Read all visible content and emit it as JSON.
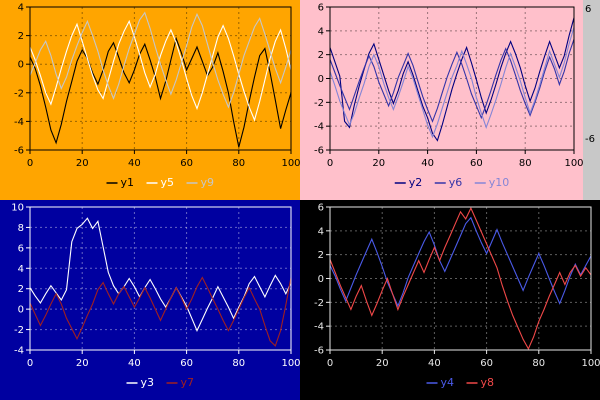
{
  "partial_panel": {
    "bg": "#C8C8C8",
    "labels": [
      "6",
      "-6"
    ]
  },
  "chart_data": [
    {
      "type": "line",
      "title": "",
      "xlabel": "",
      "ylabel": "",
      "bg": "#FFA500",
      "fg": "#000000",
      "grid": true,
      "legend_position": "bottom",
      "xlim": [
        0,
        100
      ],
      "ylim": [
        -6,
        4
      ],
      "xticks": [
        0,
        20,
        40,
        60,
        80,
        100
      ],
      "yticks": [
        4,
        2,
        0,
        -2,
        -4,
        -6
      ],
      "series": [
        {
          "name": "y1",
          "color": "#000000",
          "values": [
            0.5,
            -0.3,
            -1.5,
            -3.0,
            -4.6,
            -5.5,
            -4.2,
            -2.6,
            -1.2,
            0.2,
            1.0,
            0.4,
            -0.6,
            -1.4,
            -0.4,
            0.9,
            1.5,
            0.5,
            -0.6,
            -1.3,
            -0.4,
            0.7,
            1.4,
            0.3,
            -0.9,
            -2.4,
            -1.2,
            0.3,
            1.8,
            0.8,
            -0.4,
            0.4,
            1.2,
            0.2,
            -0.8,
            -0.2,
            0.8,
            -0.5,
            -2.0,
            -4.0,
            -5.8,
            -4.4,
            -2.6,
            -0.9,
            0.6,
            1.1,
            -0.6,
            -2.5,
            -4.5,
            -3.2,
            -2.0
          ]
        },
        {
          "name": "y5",
          "color": "#FFFFFF",
          "values": [
            1.2,
            0.3,
            -0.8,
            -2.0,
            -2.8,
            -1.6,
            -0.3,
            0.9,
            2.0,
            2.8,
            1.6,
            0.4,
            -0.8,
            -1.8,
            -2.4,
            -1.1,
            0.2,
            1.4,
            2.3,
            3.0,
            1.9,
            0.7,
            -0.6,
            -1.6,
            -0.7,
            0.6,
            1.6,
            2.4,
            1.5,
            0.3,
            -1.0,
            -2.2,
            -3.1,
            -2.0,
            -0.7,
            0.6,
            1.9,
            2.7,
            1.8,
            0.6,
            -0.7,
            -1.9,
            -3.0,
            -3.9,
            -2.6,
            -1.1,
            0.4,
            1.6,
            2.4,
            1.1,
            -0.4
          ]
        },
        {
          "name": "y9",
          "color": "#C6C6C6",
          "values": [
            -0.8,
            0.1,
            1.0,
            1.6,
            0.6,
            -0.7,
            -1.7,
            -0.9,
            0.3,
            1.3,
            2.2,
            3.0,
            2.0,
            0.9,
            -0.4,
            -1.5,
            -2.4,
            -1.4,
            -0.1,
            1.1,
            2.1,
            3.1,
            3.6,
            2.5,
            1.2,
            0.0,
            -1.1,
            -2.1,
            -1.1,
            0.1,
            1.3,
            2.6,
            3.5,
            2.7,
            1.4,
            0.1,
            -1.1,
            -2.1,
            -3.0,
            -2.0,
            -0.7,
            0.6,
            1.6,
            2.6,
            3.2,
            2.1,
            0.9,
            -0.3,
            -1.3,
            -0.2,
            1.0
          ]
        }
      ]
    },
    {
      "type": "line",
      "title": "",
      "xlabel": "",
      "ylabel": "",
      "bg": "#FFC0CB",
      "fg": "#000000",
      "grid": true,
      "legend_position": "bottom",
      "xlim": [
        0,
        100
      ],
      "ylim": [
        -6,
        6
      ],
      "xticks": [
        0,
        20,
        40,
        60,
        80,
        100
      ],
      "yticks": [
        6,
        4,
        2,
        0,
        -2,
        -4,
        -6
      ],
      "series": [
        {
          "name": "y2",
          "color": "#000080",
          "values": [
            2.6,
            1.4,
            0.2,
            -3.6,
            -4.1,
            -2.2,
            -0.6,
            0.8,
            2.1,
            2.9,
            1.6,
            0.3,
            -1.0,
            -2.1,
            -1.0,
            0.4,
            1.4,
            0.3,
            -1.0,
            -2.3,
            -3.3,
            -4.6,
            -5.2,
            -3.9,
            -2.4,
            -0.9,
            0.4,
            1.6,
            2.6,
            1.3,
            -0.1,
            -1.6,
            -2.9,
            -1.8,
            -0.5,
            0.9,
            2.1,
            3.1,
            2.1,
            0.9,
            -0.6,
            -1.9,
            -0.8,
            0.6,
            1.9,
            3.1,
            2.0,
            0.9,
            1.9,
            3.6,
            5.1
          ]
        },
        {
          "name": "y6",
          "color": "#3434A8",
          "values": [
            1.6,
            0.5,
            -0.6,
            -1.6,
            -2.6,
            -1.4,
            -0.2,
            0.9,
            1.9,
            1.0,
            -0.3,
            -1.3,
            -2.3,
            -1.2,
            0.1,
            1.1,
            2.1,
            1.1,
            -0.2,
            -1.5,
            -2.6,
            -3.6,
            -2.5,
            -1.2,
            0.1,
            1.2,
            2.2,
            1.2,
            0.0,
            -1.3,
            -2.3,
            -3.3,
            -2.2,
            -1.0,
            0.3,
            1.5,
            2.5,
            1.5,
            0.3,
            -1.0,
            -2.1,
            -3.1,
            -2.0,
            -0.8,
            0.6,
            1.8,
            0.8,
            -0.5,
            0.6,
            2.1,
            3.3
          ]
        },
        {
          "name": "y10",
          "color": "#8585D6",
          "values": [
            0.6,
            -0.6,
            -1.9,
            -2.9,
            -3.9,
            -2.9,
            -1.6,
            -0.4,
            1.0,
            2.0,
            1.0,
            -0.4,
            -1.6,
            -2.6,
            -1.5,
            -0.3,
            1.0,
            0.0,
            -1.3,
            -2.6,
            -3.9,
            -4.9,
            -3.8,
            -2.5,
            -1.2,
            0.1,
            1.1,
            2.3,
            1.2,
            0.0,
            -1.6,
            -2.9,
            -4.1,
            -3.0,
            -1.8,
            -0.5,
            0.9,
            2.1,
            1.0,
            -0.2,
            -1.6,
            -2.9,
            -1.8,
            -0.5,
            0.9,
            2.3,
            1.2,
            0.1,
            1.3,
            2.9,
            4.3
          ]
        }
      ]
    },
    {
      "type": "line",
      "title": "",
      "xlabel": "",
      "ylabel": "",
      "bg": "#0000A0",
      "fg": "#FFFFFF",
      "grid": true,
      "legend_position": "bottom",
      "xlim": [
        0,
        100
      ],
      "ylim": [
        -4,
        10
      ],
      "xticks": [
        0,
        20,
        40,
        60,
        80,
        100
      ],
      "yticks": [
        10,
        8,
        6,
        4,
        2,
        0,
        -2,
        -4
      ],
      "series": [
        {
          "name": "y3",
          "color": "#FFFFFF",
          "values": [
            2.1,
            1.3,
            0.6,
            1.5,
            2.3,
            1.6,
            0.9,
            1.9,
            6.6,
            7.9,
            8.3,
            8.9,
            7.9,
            8.6,
            6.1,
            3.6,
            2.3,
            1.5,
            2.2,
            3.0,
            2.2,
            1.2,
            2.1,
            2.9,
            2.0,
            1.0,
            0.2,
            1.1,
            2.1,
            1.2,
            0.3,
            -0.9,
            -2.1,
            -1.0,
            0.1,
            1.1,
            2.2,
            1.2,
            0.2,
            -0.9,
            0.2,
            1.2,
            2.5,
            3.2,
            2.2,
            1.2,
            2.3,
            3.3,
            2.5,
            1.5,
            2.6
          ]
        },
        {
          "name": "y7",
          "color": "#A02020",
          "values": [
            0.6,
            -0.5,
            -1.6,
            -0.6,
            0.5,
            1.5,
            0.5,
            -0.9,
            -1.9,
            -2.9,
            -1.8,
            -0.6,
            0.5,
            1.9,
            2.6,
            1.5,
            0.5,
            1.5,
            2.2,
            1.2,
            0.2,
            1.1,
            2.1,
            1.1,
            0.0,
            -1.1,
            0.0,
            1.1,
            2.1,
            1.1,
            0.0,
            1.0,
            2.2,
            3.1,
            2.1,
            1.0,
            0.0,
            -1.1,
            -2.1,
            -1.1,
            0.0,
            1.1,
            2.1,
            1.0,
            0.0,
            -1.6,
            -3.1,
            -3.6,
            -2.1,
            0.4,
            3.1
          ]
        }
      ]
    },
    {
      "type": "line",
      "title": "",
      "xlabel": "",
      "ylabel": "",
      "bg": "#000000",
      "fg": "#E8E8E8",
      "grid": true,
      "legend_position": "bottom",
      "xlim": [
        0,
        100
      ],
      "ylim": [
        -6,
        6
      ],
      "xticks": [
        0,
        20,
        40,
        60,
        80,
        100
      ],
      "yticks": [
        6,
        4,
        2,
        0,
        -2,
        -4,
        -6
      ],
      "series": [
        {
          "name": "y4",
          "color": "#4A5AE8",
          "values": [
            1.1,
            0.2,
            -0.9,
            -1.9,
            -0.8,
            0.3,
            1.3,
            2.3,
            3.3,
            2.2,
            1.0,
            -0.3,
            -1.3,
            -2.3,
            -1.2,
            0.1,
            1.1,
            2.1,
            3.1,
            3.9,
            2.8,
            1.5,
            0.6,
            1.6,
            2.6,
            3.6,
            4.6,
            5.1,
            4.0,
            3.0,
            2.1,
            3.1,
            4.1,
            3.0,
            2.0,
            1.0,
            0.0,
            -1.0,
            0.1,
            1.1,
            2.1,
            1.1,
            0.0,
            -1.1,
            -2.1,
            -1.0,
            0.2,
            1.2,
            0.3,
            1.1,
            1.9
          ]
        },
        {
          "name": "y8",
          "color": "#F04848",
          "values": [
            1.6,
            0.5,
            -0.6,
            -1.6,
            -2.6,
            -1.5,
            -0.6,
            -1.9,
            -3.1,
            -2.1,
            -1.0,
            0.0,
            -1.3,
            -2.6,
            -1.5,
            -0.5,
            0.5,
            1.5,
            0.5,
            1.6,
            2.6,
            1.5,
            2.6,
            3.6,
            4.6,
            5.6,
            5.0,
            5.9,
            4.9,
            3.9,
            2.9,
            1.9,
            0.9,
            -0.6,
            -1.9,
            -3.1,
            -4.1,
            -5.1,
            -5.9,
            -4.9,
            -3.6,
            -2.6,
            -1.5,
            -0.5,
            0.5,
            -0.5,
            0.5,
            1.1,
            0.2,
            0.9,
            0.3
          ]
        }
      ]
    }
  ]
}
